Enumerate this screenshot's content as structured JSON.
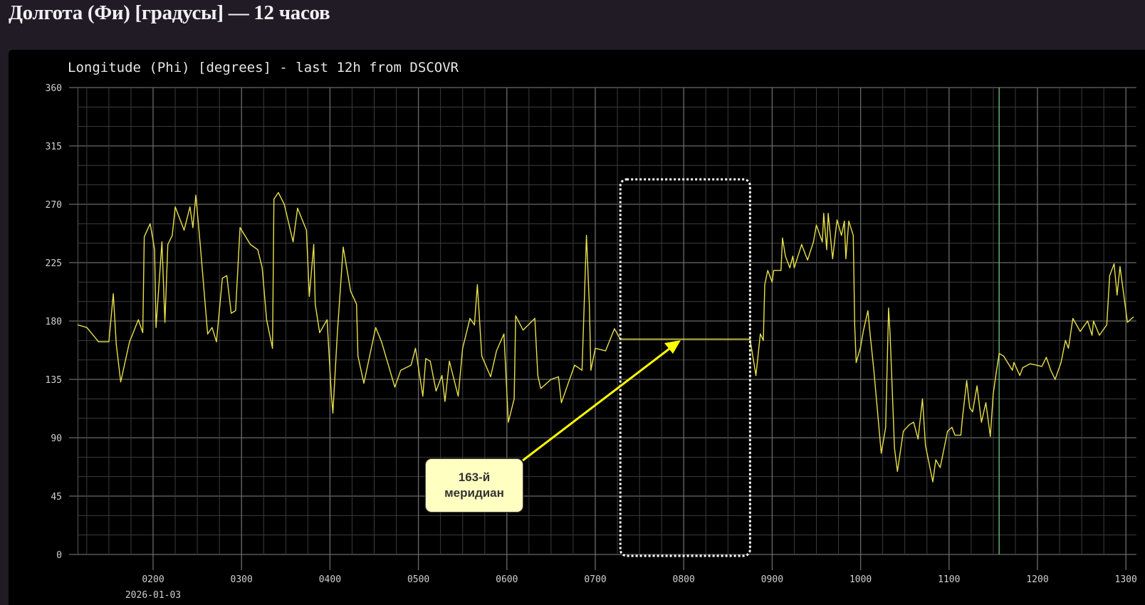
{
  "page": {
    "title": "Долгота (Фи) [градусы] — 12 часов"
  },
  "annotation": {
    "callout_line1": "163-й",
    "callout_line2": "меридиан",
    "arrow_color": "#ffff00",
    "box_start": "07:17",
    "box_end": "08:45"
  },
  "chart_data": {
    "type": "line",
    "title": "Longitude (Phi) [degrees] - last 12h from DSCOVR",
    "xlabel": "",
    "ylabel": "",
    "date_label": "2026-01-03",
    "xlim": [
      "01:09",
      "13:07"
    ],
    "ylim": [
      0,
      360
    ],
    "yticks": [
      0,
      45,
      90,
      135,
      180,
      225,
      270,
      315,
      360
    ],
    "xticks": [
      "0200",
      "0300",
      "0400",
      "0500",
      "0600",
      "0700",
      "0800",
      "0900",
      "1000",
      "1100",
      "1200",
      "1300"
    ],
    "grid": true,
    "line_color": "#e8e04a",
    "vertical_marker": {
      "x": "11:34",
      "color": "#5fae74"
    },
    "series": [
      {
        "points": [
          [
            "01:09",
            177
          ],
          [
            "01:15",
            175
          ],
          [
            "01:23",
            164
          ],
          [
            "01:30",
            164
          ],
          [
            "01:33",
            201
          ],
          [
            "01:35",
            162
          ],
          [
            "01:38",
            133
          ],
          [
            "01:44",
            164
          ],
          [
            "01:50",
            181
          ],
          [
            "01:53",
            171
          ],
          [
            "01:54",
            245
          ],
          [
            "01:58",
            255
          ],
          [
            "02:01",
            235
          ],
          [
            "02:02",
            175
          ],
          [
            "02:06",
            241
          ],
          [
            "02:08",
            179
          ],
          [
            "02:10",
            239
          ],
          [
            "02:13",
            246
          ],
          [
            "02:15",
            268
          ],
          [
            "02:21",
            250
          ],
          [
            "02:25",
            268
          ],
          [
            "02:27",
            252
          ],
          [
            "02:29",
            277
          ],
          [
            "02:32",
            239
          ],
          [
            "02:37",
            170
          ],
          [
            "02:40",
            175
          ],
          [
            "02:43",
            164
          ],
          [
            "02:47",
            213
          ],
          [
            "02:50",
            215
          ],
          [
            "02:53",
            186
          ],
          [
            "02:56",
            188
          ],
          [
            "02:59",
            252
          ],
          [
            "03:06",
            239
          ],
          [
            "03:11",
            235
          ],
          [
            "03:14",
            221
          ],
          [
            "03:17",
            181
          ],
          [
            "03:21",
            159
          ],
          [
            "03:22",
            274
          ],
          [
            "03:25",
            279
          ],
          [
            "03:29",
            270
          ],
          [
            "03:35",
            241
          ],
          [
            "03:38",
            267
          ],
          [
            "03:44",
            250
          ],
          [
            "03:46",
            199
          ],
          [
            "03:49",
            239
          ],
          [
            "03:50",
            193
          ],
          [
            "03:53",
            171
          ],
          [
            "03:58",
            181
          ],
          [
            "04:01",
            122
          ],
          [
            "04:02",
            109
          ],
          [
            "04:05",
            171
          ],
          [
            "04:09",
            237
          ],
          [
            "04:14",
            203
          ],
          [
            "04:18",
            193
          ],
          [
            "04:19",
            153
          ],
          [
            "04:23",
            132
          ],
          [
            "04:31",
            175
          ],
          [
            "04:35",
            164
          ],
          [
            "04:44",
            129
          ],
          [
            "04:48",
            142
          ],
          [
            "04:55",
            146
          ],
          [
            "04:58",
            159
          ],
          [
            "05:03",
            122
          ],
          [
            "05:05",
            151
          ],
          [
            "05:08",
            149
          ],
          [
            "05:12",
            126
          ],
          [
            "05:16",
            138
          ],
          [
            "05:18",
            118
          ],
          [
            "05:21",
            149
          ],
          [
            "05:27",
            122
          ],
          [
            "05:30",
            159
          ],
          [
            "05:35",
            182
          ],
          [
            "05:38",
            177
          ],
          [
            "05:40",
            208
          ],
          [
            "05:43",
            153
          ],
          [
            "05:49",
            137
          ],
          [
            "05:53",
            157
          ],
          [
            "05:58",
            170
          ],
          [
            "06:01",
            102
          ],
          [
            "06:05",
            120
          ],
          [
            "06:06",
            184
          ],
          [
            "06:11",
            173
          ],
          [
            "06:19",
            182
          ],
          [
            "06:21",
            138
          ],
          [
            "06:23",
            128
          ],
          [
            "06:30",
            135
          ],
          [
            "06:35",
            137
          ],
          [
            "06:37",
            117
          ],
          [
            "06:46",
            146
          ],
          [
            "06:51",
            142
          ],
          [
            "06:54",
            246
          ],
          [
            "06:56",
            192
          ],
          [
            "06:57",
            142
          ],
          [
            "07:00",
            159
          ],
          [
            "07:07",
            157
          ],
          [
            "07:13",
            174
          ],
          [
            "07:17",
            166
          ],
          [
            "08:45",
            166
          ],
          [
            "08:49",
            138
          ],
          [
            "08:52",
            170
          ],
          [
            "08:54",
            165
          ],
          [
            "08:55",
            208
          ],
          [
            "08:57",
            219
          ],
          [
            "09:00",
            210
          ],
          [
            "09:01",
            219
          ],
          [
            "09:06",
            219
          ],
          [
            "09:07",
            244
          ],
          [
            "09:09",
            230
          ],
          [
            "09:12",
            221
          ],
          [
            "09:14",
            230
          ],
          [
            "09:15",
            221
          ],
          [
            "09:20",
            239
          ],
          [
            "09:24",
            227
          ],
          [
            "09:28",
            241
          ],
          [
            "09:30",
            254
          ],
          [
            "09:34",
            241
          ],
          [
            "09:35",
            263
          ],
          [
            "09:37",
            235
          ],
          [
            "09:38",
            263
          ],
          [
            "09:41",
            228
          ],
          [
            "09:44",
            258
          ],
          [
            "09:47",
            246
          ],
          [
            "09:49",
            257
          ],
          [
            "09:50",
            228
          ],
          [
            "09:52",
            257
          ],
          [
            "09:55",
            246
          ],
          [
            "09:56",
            177
          ],
          [
            "09:57",
            148
          ],
          [
            "10:00",
            160
          ],
          [
            "10:02",
            173
          ],
          [
            "10:05",
            188
          ],
          [
            "10:06",
            175
          ],
          [
            "10:09",
            142
          ],
          [
            "10:14",
            78
          ],
          [
            "10:17",
            98
          ],
          [
            "10:19",
            190
          ],
          [
            "10:20",
            170
          ],
          [
            "10:23",
            82
          ],
          [
            "10:25",
            64
          ],
          [
            "10:29",
            95
          ],
          [
            "10:33",
            100
          ],
          [
            "10:36",
            102
          ],
          [
            "10:39",
            89
          ],
          [
            "10:42",
            120
          ],
          [
            "10:44",
            84
          ],
          [
            "10:49",
            56
          ],
          [
            "10:51",
            73
          ],
          [
            "10:54",
            67
          ],
          [
            "10:59",
            95
          ],
          [
            "11:02",
            98
          ],
          [
            "11:04",
            92
          ],
          [
            "11:08",
            92
          ],
          [
            "11:09",
            104
          ],
          [
            "11:12",
            134
          ],
          [
            "11:14",
            113
          ],
          [
            "11:16",
            110
          ],
          [
            "11:19",
            130
          ],
          [
            "11:22",
            102
          ],
          [
            "11:25",
            117
          ],
          [
            "11:28",
            91
          ],
          [
            "11:30",
            124
          ],
          [
            "11:32",
            140
          ],
          [
            "11:34",
            155
          ],
          [
            "11:37",
            153
          ],
          [
            "11:43",
            142
          ],
          [
            "11:44",
            148
          ],
          [
            "11:48",
            138
          ],
          [
            "11:50",
            144
          ],
          [
            "11:55",
            147
          ],
          [
            "12:03",
            145
          ],
          [
            "12:06",
            152
          ],
          [
            "12:09",
            142
          ],
          [
            "12:12",
            135
          ],
          [
            "12:16",
            148
          ],
          [
            "12:19",
            165
          ],
          [
            "12:21",
            159
          ],
          [
            "12:24",
            182
          ],
          [
            "12:29",
            172
          ],
          [
            "12:34",
            180
          ],
          [
            "12:37",
            169
          ],
          [
            "12:38",
            180
          ],
          [
            "12:42",
            169
          ],
          [
            "12:47",
            177
          ],
          [
            "12:49",
            215
          ],
          [
            "12:52",
            224
          ],
          [
            "12:54",
            200
          ],
          [
            "12:56",
            222
          ],
          [
            "13:01",
            179
          ],
          [
            "13:05",
            183
          ]
        ]
      }
    ]
  }
}
